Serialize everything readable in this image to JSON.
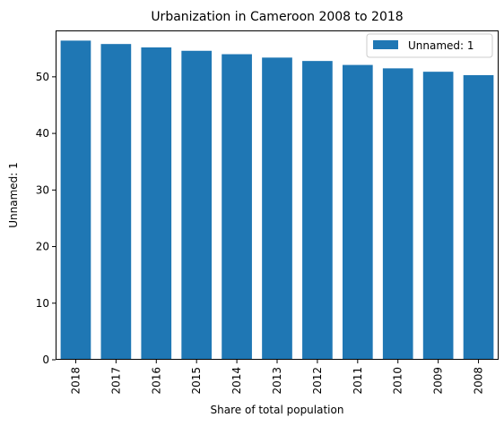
{
  "chart_data": {
    "type": "bar",
    "title": "Urbanization in Cameroon 2008 to 2018",
    "xlabel": "Share of total population",
    "ylabel": "Unnamed: 1",
    "categories": [
      "2018",
      "2017",
      "2016",
      "2015",
      "2014",
      "2013",
      "2012",
      "2011",
      "2010",
      "2009",
      "2008"
    ],
    "series": [
      {
        "name": "Unnamed: 1",
        "values": [
          56.4,
          55.8,
          55.2,
          54.6,
          54.0,
          53.4,
          52.8,
          52.1,
          51.5,
          50.9,
          50.3
        ],
        "color": "#1f77b4"
      }
    ],
    "ylim": [
      0,
      58.2
    ],
    "yticks": [
      0,
      10,
      20,
      30,
      40,
      50
    ],
    "legend_position": "top-right",
    "grid": false
  }
}
